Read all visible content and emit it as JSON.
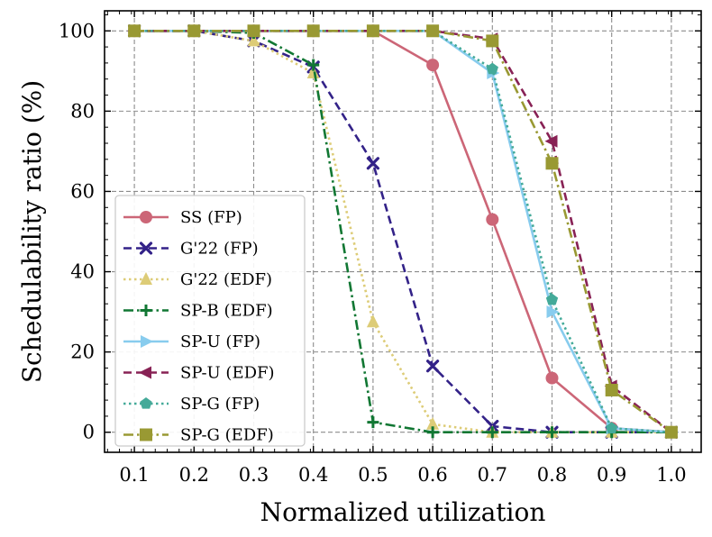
{
  "chart_data": {
    "type": "line",
    "title": "",
    "xlabel": "Normalized utilization",
    "ylabel": "Schedulability ratio (%)",
    "x": [
      0.1,
      0.2,
      0.3,
      0.4,
      0.5,
      0.6,
      0.7,
      0.8,
      0.9,
      1.0
    ],
    "x_tick_labels": [
      "0.1",
      "0.2",
      "0.3",
      "0.4",
      "0.5",
      "0.6",
      "0.7",
      "0.8",
      "0.9",
      "1.0"
    ],
    "y_ticks": [
      0,
      20,
      40,
      60,
      80,
      100
    ],
    "y_tick_labels": [
      "0",
      "20",
      "40",
      "60",
      "80",
      "100"
    ],
    "xlim": [
      0.05,
      1.05
    ],
    "ylim": [
      -5,
      105
    ],
    "grid": true,
    "legend_position": "center-left",
    "series": [
      {
        "name": "SS (FP)",
        "color": "#cc6677",
        "dash": "solid",
        "marker": "circle",
        "values": [
          100,
          100,
          100,
          100,
          100,
          91.5,
          53,
          13.5,
          1,
          0
        ]
      },
      {
        "name": "G'22 (FP)",
        "color": "#332288",
        "dash": "dashed",
        "marker": "x",
        "values": [
          100,
          100,
          97.5,
          91,
          67,
          16.5,
          1.5,
          0,
          0,
          0
        ]
      },
      {
        "name": "G'22 (EDF)",
        "color": "#ddcc77",
        "dash": "dotted",
        "marker": "triangle-up",
        "values": [
          100,
          100,
          97.5,
          89.5,
          27.5,
          2,
          0,
          0,
          0,
          0
        ]
      },
      {
        "name": "SP-B (EDF)",
        "color": "#117733",
        "dash": "dashdot",
        "marker": "plus",
        "values": [
          100,
          100,
          99.5,
          91.5,
          2.5,
          0,
          0,
          0,
          0,
          0
        ]
      },
      {
        "name": "SP-U (FP)",
        "color": "#88ccee",
        "dash": "solid",
        "marker": "triangle-right",
        "values": [
          100,
          100,
          100,
          100,
          100,
          100,
          89.5,
          30,
          1,
          0
        ]
      },
      {
        "name": "SP-U (EDF)",
        "color": "#882255",
        "dash": "dashed",
        "marker": "triangle-left",
        "values": [
          100,
          100,
          100,
          100,
          100,
          100,
          98,
          72.5,
          11.5,
          0
        ]
      },
      {
        "name": "SP-G (FP)",
        "color": "#44aa99",
        "dash": "dotted",
        "marker": "pentagon",
        "values": [
          100,
          100,
          100,
          100,
          100,
          100,
          90.5,
          33,
          1,
          0
        ]
      },
      {
        "name": "SP-G (EDF)",
        "color": "#999933",
        "dash": "dashdot",
        "marker": "square",
        "values": [
          100,
          100,
          100,
          100,
          100,
          100,
          97.5,
          67,
          10.5,
          0
        ]
      }
    ]
  }
}
